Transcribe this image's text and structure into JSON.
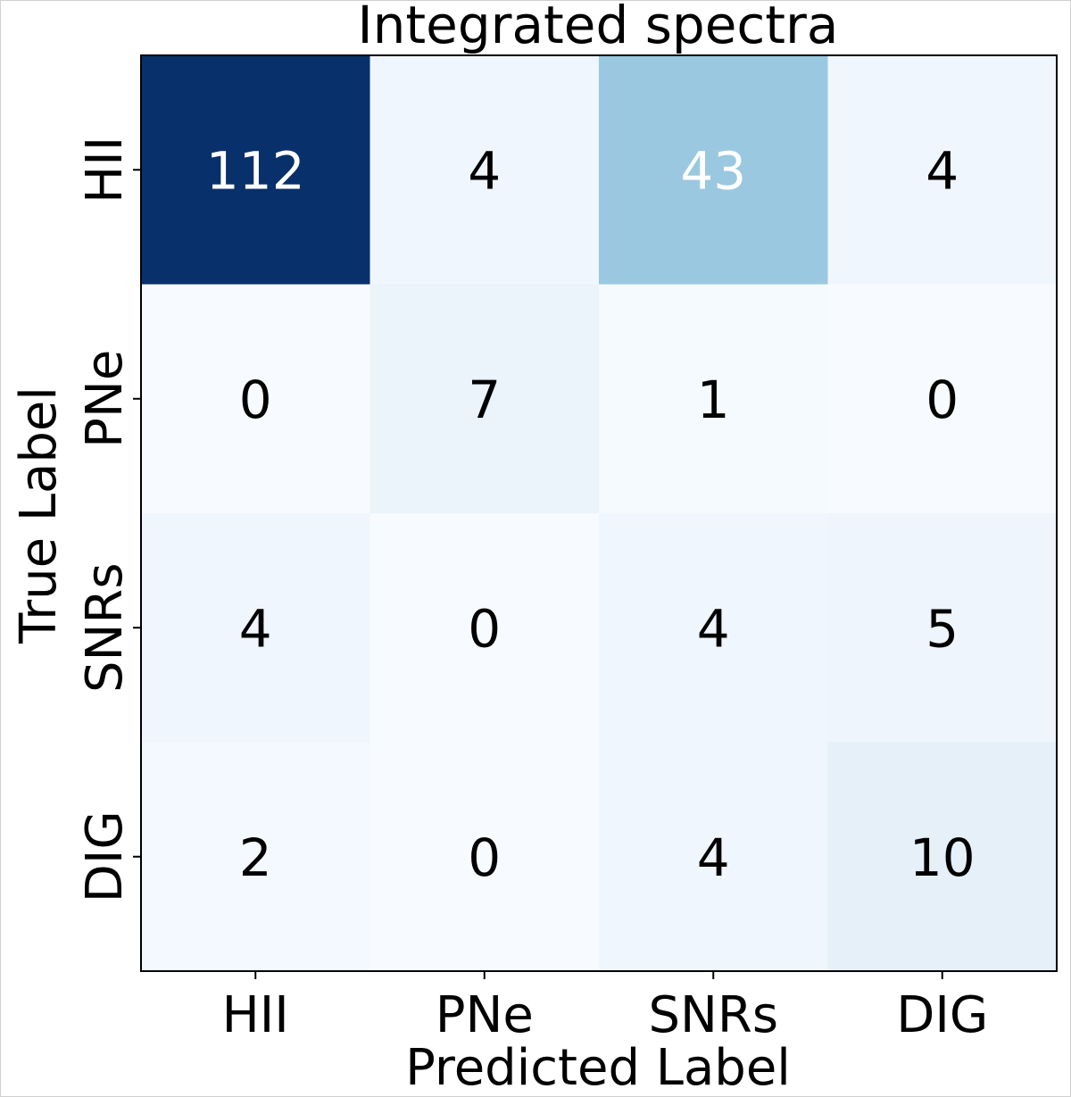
{
  "chart_data": {
    "type": "heatmap",
    "title": "Integrated spectra",
    "xlabel": "Predicted Label",
    "ylabel": "True Label",
    "x_categories": [
      "HII",
      "PNe",
      "SNRs",
      "DIG"
    ],
    "y_categories": [
      "HII",
      "PNe",
      "SNRs",
      "DIG"
    ],
    "matrix": [
      [
        112,
        4,
        43,
        4
      ],
      [
        0,
        7,
        1,
        0
      ],
      [
        4,
        0,
        4,
        5
      ],
      [
        2,
        0,
        4,
        10
      ]
    ],
    "colormap": "Blues",
    "grid": false
  }
}
